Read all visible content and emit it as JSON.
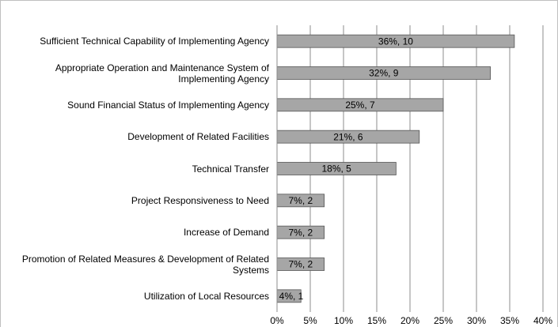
{
  "chart_data": {
    "type": "barh",
    "categories": [
      "Sufficient Technical Capability of Implementing Agency",
      "Appropriate Operation and Maintenance System of Implementing Agency",
      "Sound Financial Status of Implementing Agency",
      "Development of Related Facilities",
      "Technical Transfer",
      "Project Responsiveness to Need",
      "Increase of Demand",
      "Promotion of Related Measures & Development of Related Systems",
      "Utilization of Local Resources"
    ],
    "values": [
      35.7,
      32.1,
      25,
      21.4,
      17.9,
      7.1,
      7.1,
      7.1,
      3.6
    ],
    "value_labels": [
      "36%, 10",
      "32%, 9",
      "25%, 7",
      "21%, 6",
      "18%, 5",
      "7%, 2",
      "7%, 2",
      "7%, 2",
      "4%, 1"
    ],
    "color": "#a6a6a6",
    "xlim": [
      0,
      40
    ],
    "xticks": [
      {
        "value": 0,
        "label": "0%"
      },
      {
        "value": 5,
        "label": "5%"
      },
      {
        "value": 10,
        "label": "10%"
      },
      {
        "value": 15,
        "label": "15%"
      },
      {
        "value": 20,
        "label": "20%"
      },
      {
        "value": 25,
        "label": "25%"
      },
      {
        "value": 30,
        "label": "30%"
      },
      {
        "value": 35,
        "label": "35%"
      },
      {
        "value": 40,
        "label": "40%"
      }
    ],
    "grid": true
  }
}
